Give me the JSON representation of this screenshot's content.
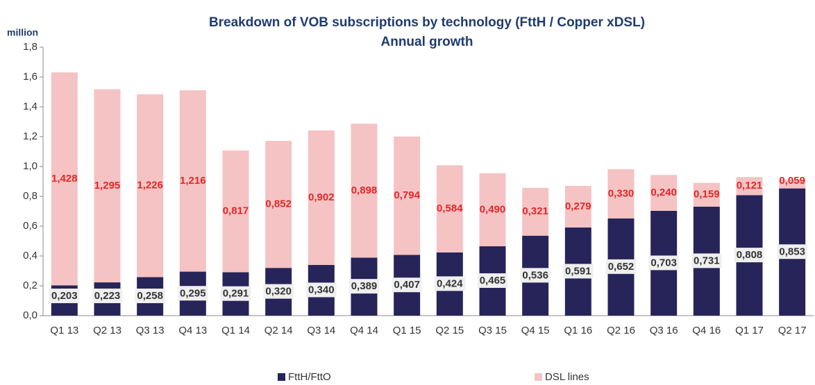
{
  "chart_data": {
    "type": "stacked_bar",
    "title": "Breakdown of VOB subscriptions by technology (FttH / Copper xDSL)",
    "subtitle": "Annual growth",
    "y_label": "million",
    "categories": [
      "Q1 13",
      "Q2 13",
      "Q3 13",
      "Q4 13",
      "Q1 14",
      "Q2 14",
      "Q3 14",
      "Q4 14",
      "Q1 15",
      "Q2 15",
      "Q3 15",
      "Q4 15",
      "Q1 16",
      "Q2 16",
      "Q3 16",
      "Q4 16",
      "Q1 17",
      "Q2 17"
    ],
    "series": [
      {
        "name": "FttH/FttO",
        "color": "#27245a",
        "values": [
          0.203,
          0.223,
          0.258,
          0.295,
          0.291,
          0.32,
          0.34,
          0.389,
          0.407,
          0.424,
          0.465,
          0.536,
          0.591,
          0.652,
          0.703,
          0.731,
          0.808,
          0.853
        ],
        "value_labels": [
          "0,203",
          "0,223",
          "0,258",
          "0,295",
          "0,291",
          "0,320",
          "0,340",
          "0,389",
          "0,407",
          "0,424",
          "0,465",
          "0,536",
          "0,591",
          "0,652",
          "0,703",
          "0,731",
          "0,808",
          "0,853"
        ]
      },
      {
        "name": "DSL lines",
        "color": "#f5c3c3",
        "values": [
          1.428,
          1.295,
          1.226,
          1.216,
          0.817,
          0.852,
          0.902,
          0.898,
          0.794,
          0.584,
          0.49,
          0.321,
          0.279,
          0.33,
          0.24,
          0.159,
          0.121,
          0.059
        ],
        "value_labels": [
          "1,428",
          "1,295",
          "1,226",
          "1,216",
          "0,817",
          "0,852",
          "0,902",
          "0,898",
          "0,794",
          "0,584",
          "0,490",
          "0,321",
          "0,279",
          "0,330",
          "0,240",
          "0,159",
          "0,121",
          "0,059"
        ]
      }
    ],
    "ylim": [
      0,
      1.8
    ],
    "yticks": [
      {
        "value": 0,
        "label": "0,0"
      },
      {
        "value": 0.2,
        "label": "0,2"
      },
      {
        "value": 0.4,
        "label": "0,4"
      },
      {
        "value": 0.6,
        "label": "0,6"
      },
      {
        "value": 0.8,
        "label": "0,8"
      },
      {
        "value": 1.0,
        "label": "1,0"
      },
      {
        "value": 1.2,
        "label": "1,2"
      },
      {
        "value": 1.4,
        "label": "1,4"
      },
      {
        "value": 1.6,
        "label": "1,6"
      },
      {
        "value": 1.8,
        "label": "1,8"
      }
    ],
    "legend": "bottom"
  }
}
